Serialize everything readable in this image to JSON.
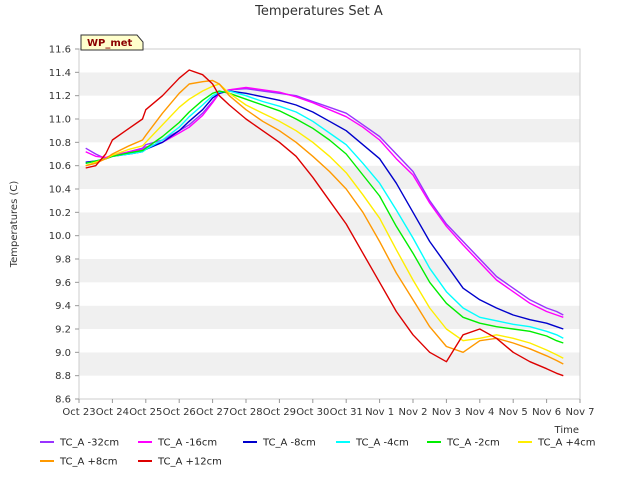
{
  "chart_data": {
    "type": "line",
    "title": "Temperatures Set A",
    "xlabel": "Time",
    "ylabel": "Temperatures (C)",
    "ylim": [
      8.6,
      11.6
    ],
    "yticks": [
      "8.6",
      "8.8",
      "9.0",
      "9.2",
      "9.4",
      "9.6",
      "9.8",
      "10.0",
      "10.2",
      "10.4",
      "10.6",
      "10.8",
      "11.0",
      "11.2",
      "11.4",
      "11.6"
    ],
    "x_ticks": [
      "Oct 23",
      "Oct 24",
      "Oct 25",
      "Oct 26",
      "Oct 27",
      "Oct 28",
      "Oct 29",
      "Oct 30",
      "Oct 31",
      "Nov 1",
      "Nov 2",
      "Nov 3",
      "Nov 4",
      "Nov 5",
      "Nov 6",
      "Nov 7"
    ],
    "x_unit": "days since Oct 23",
    "xlim": [
      0,
      15
    ],
    "grid": "horizontal bands",
    "legend_position": "bottom",
    "badge": "WP_met",
    "x": [
      0.2,
      0.5,
      0.8,
      1.0,
      1.5,
      1.9,
      2.0,
      2.5,
      3.0,
      3.3,
      3.7,
      4.0,
      4.2,
      4.5,
      5.0,
      5.5,
      6.0,
      6.5,
      7.0,
      7.5,
      8.0,
      8.5,
      9.0,
      9.5,
      10.0,
      10.5,
      11.0,
      11.5,
      12.0,
      12.5,
      13.0,
      13.5,
      14.0,
      14.3,
      14.5
    ],
    "series": [
      {
        "name": "TC_A -32cm",
        "color": "#9933ff",
        "values": [
          10.75,
          10.7,
          10.66,
          10.68,
          10.72,
          10.75,
          10.78,
          10.82,
          10.9,
          10.95,
          11.05,
          11.15,
          11.22,
          11.25,
          11.26,
          11.24,
          11.22,
          11.2,
          11.15,
          11.1,
          11.05,
          10.95,
          10.85,
          10.7,
          10.55,
          10.3,
          10.1,
          9.95,
          9.8,
          9.65,
          9.55,
          9.45,
          9.38,
          9.35,
          9.32
        ]
      },
      {
        "name": "TC_A -16cm",
        "color": "#ff00ff",
        "values": [
          10.72,
          10.68,
          10.67,
          10.69,
          10.72,
          10.74,
          10.76,
          10.8,
          10.88,
          10.93,
          11.03,
          11.14,
          11.22,
          11.25,
          11.27,
          11.25,
          11.23,
          11.19,
          11.14,
          11.08,
          11.02,
          10.93,
          10.82,
          10.66,
          10.52,
          10.28,
          10.08,
          9.92,
          9.77,
          9.62,
          9.52,
          9.42,
          9.35,
          9.32,
          9.3
        ]
      },
      {
        "name": "TC_A -8cm",
        "color": "#0000cc",
        "values": [
          10.63,
          10.64,
          10.66,
          10.68,
          10.7,
          10.72,
          10.74,
          10.8,
          10.9,
          10.98,
          11.08,
          11.18,
          11.22,
          11.24,
          11.22,
          11.19,
          11.16,
          11.12,
          11.06,
          10.98,
          10.9,
          10.78,
          10.66,
          10.45,
          10.2,
          9.95,
          9.75,
          9.55,
          9.45,
          9.38,
          9.32,
          9.28,
          9.25,
          9.22,
          9.2
        ]
      },
      {
        "name": "TC_A -4cm",
        "color": "#00ffff",
        "values": [
          10.62,
          10.64,
          10.66,
          10.68,
          10.7,
          10.72,
          10.74,
          10.82,
          10.93,
          11.02,
          11.12,
          11.2,
          11.23,
          11.24,
          11.2,
          11.15,
          11.11,
          11.06,
          10.98,
          10.88,
          10.78,
          10.62,
          10.45,
          10.22,
          9.98,
          9.72,
          9.52,
          9.38,
          9.3,
          9.27,
          9.24,
          9.22,
          9.18,
          9.15,
          9.12
        ]
      },
      {
        "name": "TC_A -2cm",
        "color": "#00ee00",
        "values": [
          10.62,
          10.64,
          10.66,
          10.68,
          10.71,
          10.73,
          10.75,
          10.85,
          10.97,
          11.06,
          11.16,
          11.22,
          11.24,
          11.22,
          11.17,
          11.12,
          11.07,
          11.0,
          10.92,
          10.82,
          10.7,
          10.52,
          10.34,
          10.08,
          9.85,
          9.6,
          9.42,
          9.3,
          9.25,
          9.22,
          9.2,
          9.18,
          9.14,
          9.1,
          9.08
        ]
      },
      {
        "name": "TC_A +4cm",
        "color": "#ffee00",
        "values": [
          10.6,
          10.63,
          10.66,
          10.69,
          10.74,
          10.77,
          10.8,
          10.95,
          11.1,
          11.17,
          11.24,
          11.28,
          11.3,
          11.22,
          11.12,
          11.05,
          10.98,
          10.9,
          10.8,
          10.68,
          10.54,
          10.35,
          10.15,
          9.88,
          9.62,
          9.38,
          9.2,
          9.1,
          9.12,
          9.15,
          9.12,
          9.08,
          9.02,
          8.98,
          8.95
        ]
      },
      {
        "name": "TC_A +8cm",
        "color": "#ff9900",
        "values": [
          10.6,
          10.62,
          10.66,
          10.7,
          10.77,
          10.82,
          10.86,
          11.05,
          11.22,
          11.3,
          11.32,
          11.33,
          11.3,
          11.2,
          11.08,
          10.98,
          10.9,
          10.8,
          10.68,
          10.55,
          10.4,
          10.2,
          9.95,
          9.68,
          9.45,
          9.22,
          9.05,
          9.0,
          9.1,
          9.12,
          9.08,
          9.03,
          8.97,
          8.93,
          8.9
        ]
      },
      {
        "name": "TC_A +12cm",
        "color": "#dd0000",
        "values": [
          10.58,
          10.6,
          10.7,
          10.82,
          10.92,
          11.0,
          11.08,
          11.2,
          11.35,
          11.42,
          11.38,
          11.3,
          11.2,
          11.12,
          11.0,
          10.9,
          10.8,
          10.68,
          10.5,
          10.3,
          10.1,
          9.85,
          9.6,
          9.35,
          9.15,
          9.0,
          8.92,
          9.15,
          9.2,
          9.12,
          9.0,
          8.92,
          8.86,
          8.82,
          8.8
        ]
      }
    ]
  }
}
